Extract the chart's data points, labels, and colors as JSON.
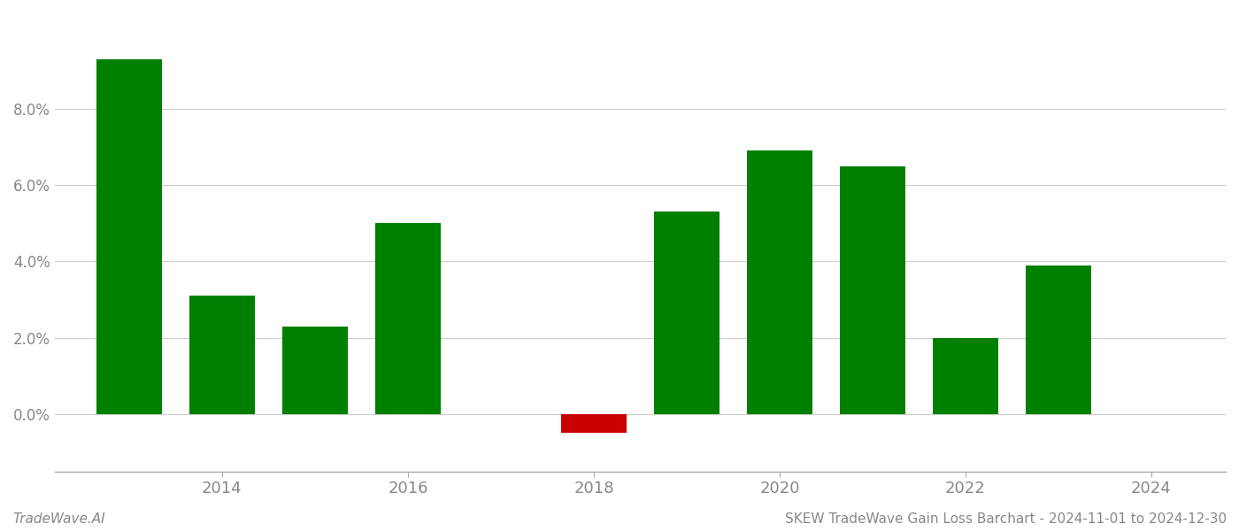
{
  "years": [
    2013,
    2014,
    2015,
    2016,
    2018,
    2019,
    2020,
    2021,
    2022,
    2023
  ],
  "values": [
    0.093,
    0.031,
    0.023,
    0.05,
    -0.005,
    0.053,
    0.069,
    0.065,
    0.02,
    0.039
  ],
  "bar_colors": [
    "#008000",
    "#008000",
    "#008000",
    "#008000",
    "#cc0000",
    "#008000",
    "#008000",
    "#008000",
    "#008000",
    "#008000"
  ],
  "ylim": [
    -0.015,
    0.105
  ],
  "yticks": [
    0.0,
    0.02,
    0.04,
    0.06,
    0.08
  ],
  "background_color": "#ffffff",
  "grid_color": "#cccccc",
  "footer_left": "TradeWave.AI",
  "footer_right": "SKEW TradeWave Gain Loss Barchart - 2024-11-01 to 2024-12-30",
  "footer_fontsize": 11,
  "bar_width": 0.7,
  "xticks": [
    2014,
    2016,
    2018,
    2020,
    2022,
    2024
  ],
  "xlim": [
    2012.2,
    2024.8
  ]
}
